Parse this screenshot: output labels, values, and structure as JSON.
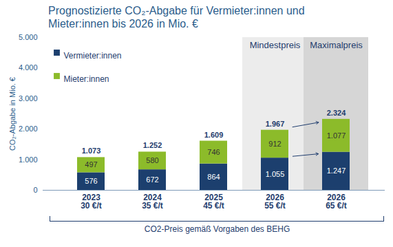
{
  "chart_data": {
    "type": "bar",
    "stacked": true,
    "title": "Prognostizierte CO₂-Abgabe für Vermieter:innen und Mieter:innen bis 2026 in Mio. €",
    "y_label": "CO₂-Abgabe in Mio. €",
    "categories": [
      "2023\n30 €/t",
      "2024\n35 €/t",
      "2025\n45 €/t",
      "2026\n55 €/t",
      "2026\n65 €/t"
    ],
    "series": [
      {
        "name": "Vermieter:innen",
        "color": "#1c3f6e",
        "values": [
          576,
          672,
          864,
          1055,
          1247
        ],
        "value_labels": [
          "576",
          "672",
          "864",
          "1.055",
          "1.247"
        ]
      },
      {
        "name": "Mieter:innen",
        "color": "#8cbb2a",
        "values": [
          497,
          580,
          746,
          912,
          1077
        ],
        "value_labels": [
          "497",
          "580",
          "746",
          "912",
          "1.077"
        ]
      }
    ],
    "totals": [
      1073,
      1252,
      1609,
      1967,
      2324
    ],
    "total_labels": [
      "1.073",
      "1.252",
      "1.609",
      "1.967",
      "2.324"
    ],
    "highlights": [
      {
        "category": 3,
        "label": "Mindestpreis"
      },
      {
        "category": 4,
        "label": "Maximalpreis"
      }
    ],
    "caption": "CO2-Preis gemäß Vorgaben des BEHG",
    "ylim": [
      0,
      5000
    ],
    "yticks": [
      0,
      {
        "value": 1000,
        "label": "1.000"
      },
      {
        "value": 2000,
        "label": "2.000"
      },
      {
        "value": 3000,
        "label": "3.000"
      },
      {
        "value": 4000,
        "label": "4.000"
      },
      {
        "value": 5000,
        "label": "5.000"
      }
    ],
    "grid": false,
    "legend": "top-left",
    "data_labels": true
  }
}
